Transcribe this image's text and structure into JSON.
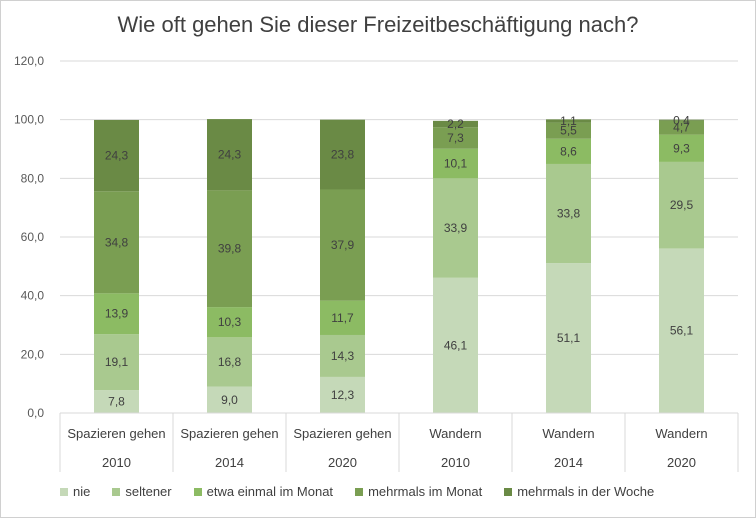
{
  "chart_data": {
    "type": "bar",
    "stacked": true,
    "title": "Wie oft gehen Sie dieser Freizeitbeschäftigung nach?",
    "xlabel": "",
    "ylabel": "",
    "ylim": [
      0,
      120
    ],
    "yticks": [
      0,
      20,
      40,
      60,
      80,
      100,
      120
    ],
    "ytick_labels": [
      "0,0",
      "20,0",
      "40,0",
      "60,0",
      "80,0",
      "100,0",
      "120,0"
    ],
    "grid": true,
    "legend_position": "bottom",
    "categories": [
      {
        "group": "Spazieren gehen",
        "year": "2010"
      },
      {
        "group": "Spazieren gehen",
        "year": "2014"
      },
      {
        "group": "Spazieren gehen",
        "year": "2020"
      },
      {
        "group": "Wandern",
        "year": "2010"
      },
      {
        "group": "Wandern",
        "year": "2014"
      },
      {
        "group": "Wandern",
        "year": "2020"
      }
    ],
    "series": [
      {
        "name": "nie",
        "color": "#C5D9B8",
        "values": [
          7.8,
          9.0,
          12.3,
          46.1,
          51.1,
          56.1
        ],
        "labels": [
          "7,8",
          "9,0",
          "12,3",
          "46,1",
          "51,1",
          "56,1"
        ]
      },
      {
        "name": "seltener",
        "color": "#A9C98F",
        "values": [
          19.1,
          16.8,
          14.3,
          33.9,
          33.8,
          29.5
        ],
        "labels": [
          "19,1",
          "16,8",
          "14,3",
          "33,9",
          "33,8",
          "29,5"
        ]
      },
      {
        "name": "etwa einmal im Monat",
        "color": "#8CBB63",
        "values": [
          13.9,
          10.3,
          11.7,
          10.1,
          8.6,
          9.3
        ],
        "labels": [
          "13,9",
          "10,3",
          "11,7",
          "10,1",
          "8,6",
          "9,3"
        ]
      },
      {
        "name": "mehrmals im Monat",
        "color": "#7A9E52",
        "values": [
          34.8,
          39.8,
          37.9,
          7.3,
          5.5,
          4.7
        ],
        "labels": [
          "34,8",
          "39,8",
          "37,9",
          "7,3",
          "5,5",
          "4,7"
        ]
      },
      {
        "name": "mehrmals in der Woche",
        "color": "#6A8A45",
        "values": [
          24.3,
          24.3,
          23.8,
          2.2,
          1.1,
          0.4
        ],
        "labels": [
          "24,3",
          "24,3",
          "23,8",
          "2,2",
          "1,1",
          "0,4"
        ]
      }
    ]
  }
}
